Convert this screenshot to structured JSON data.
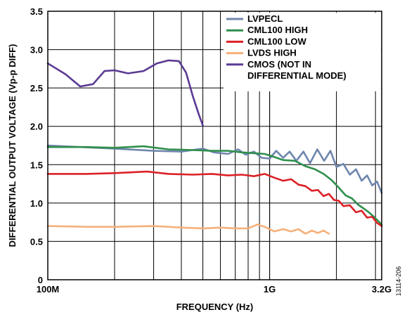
{
  "chart_data": {
    "type": "line",
    "title": "",
    "xlabel": "FREQUENCY (Hz)",
    "ylabel": "DIFFERENTIAL OUTPUT VOLTAGE (Vp-p DIFF)",
    "xscale": "log",
    "xlim": [
      100000000,
      3200000000
    ],
    "ylim": [
      0,
      3.5
    ],
    "x_tick_values": [
      100000000,
      1000000000,
      3200000000
    ],
    "x_tick_labels": [
      "100M",
      "1G",
      "3.2G"
    ],
    "y_tick_values": [
      0,
      0.5,
      1.0,
      1.5,
      2.0,
      2.5,
      3.0,
      3.5
    ],
    "y_tick_labels": [
      "0",
      "0.5",
      "1.0",
      "1.5",
      "2.0",
      "2.5",
      "3.0",
      "3.5"
    ],
    "grid": true,
    "legend_position": "top-right",
    "figure_id": "13114-206",
    "series": [
      {
        "name": "LVPECL",
        "color": "#6f86ad",
        "points": [
          [
            100000000,
            1.75
          ],
          [
            140000000,
            1.73
          ],
          [
            200000000,
            1.71
          ],
          [
            300000000,
            1.68
          ],
          [
            400000000,
            1.67
          ],
          [
            500000000,
            1.71
          ],
          [
            560000000,
            1.66
          ],
          [
            650000000,
            1.64
          ],
          [
            720000000,
            1.7
          ],
          [
            780000000,
            1.63
          ],
          [
            850000000,
            1.67
          ],
          [
            920000000,
            1.59
          ],
          [
            1000000000,
            1.58
          ],
          [
            1070000000,
            1.68
          ],
          [
            1150000000,
            1.59
          ],
          [
            1230000000,
            1.67
          ],
          [
            1320000000,
            1.55
          ],
          [
            1420000000,
            1.67
          ],
          [
            1520000000,
            1.52
          ],
          [
            1640000000,
            1.7
          ],
          [
            1760000000,
            1.55
          ],
          [
            1880000000,
            1.68
          ],
          [
            2000000000,
            1.47
          ],
          [
            2150000000,
            1.51
          ],
          [
            2300000000,
            1.37
          ],
          [
            2450000000,
            1.44
          ],
          [
            2600000000,
            1.29
          ],
          [
            2750000000,
            1.36
          ],
          [
            2900000000,
            1.23
          ],
          [
            3050000000,
            1.28
          ],
          [
            3200000000,
            1.13
          ]
        ]
      },
      {
        "name": "CML100 HIGH",
        "color": "#2f8f4d",
        "points": [
          [
            100000000,
            1.73
          ],
          [
            150000000,
            1.73
          ],
          [
            200000000,
            1.72
          ],
          [
            270000000,
            1.74
          ],
          [
            350000000,
            1.7
          ],
          [
            450000000,
            1.69
          ],
          [
            550000000,
            1.68
          ],
          [
            650000000,
            1.68
          ],
          [
            750000000,
            1.66
          ],
          [
            850000000,
            1.65
          ],
          [
            950000000,
            1.64
          ],
          [
            1050000000,
            1.6
          ],
          [
            1150000000,
            1.56
          ],
          [
            1300000000,
            1.55
          ],
          [
            1450000000,
            1.48
          ],
          [
            1600000000,
            1.44
          ],
          [
            1750000000,
            1.38
          ],
          [
            1900000000,
            1.3
          ],
          [
            2050000000,
            1.2
          ],
          [
            2200000000,
            1.1
          ],
          [
            2350000000,
            1.06
          ],
          [
            2500000000,
            0.98
          ],
          [
            2650000000,
            0.93
          ],
          [
            2800000000,
            0.88
          ],
          [
            2950000000,
            0.82
          ],
          [
            3100000000,
            0.76
          ],
          [
            3200000000,
            0.72
          ]
        ]
      },
      {
        "name": "CML100 LOW",
        "color": "#dc2127",
        "points": [
          [
            100000000,
            1.38
          ],
          [
            150000000,
            1.38
          ],
          [
            200000000,
            1.39
          ],
          [
            280000000,
            1.41
          ],
          [
            350000000,
            1.38
          ],
          [
            450000000,
            1.37
          ],
          [
            550000000,
            1.38
          ],
          [
            650000000,
            1.36
          ],
          [
            750000000,
            1.37
          ],
          [
            850000000,
            1.35
          ],
          [
            950000000,
            1.38
          ],
          [
            1050000000,
            1.33
          ],
          [
            1150000000,
            1.29
          ],
          [
            1250000000,
            1.31
          ],
          [
            1350000000,
            1.24
          ],
          [
            1450000000,
            1.22
          ],
          [
            1550000000,
            1.16
          ],
          [
            1650000000,
            1.17
          ],
          [
            1750000000,
            1.09
          ],
          [
            1850000000,
            1.12
          ],
          [
            1950000000,
            1.04
          ],
          [
            2050000000,
            1.03
          ],
          [
            2150000000,
            0.96
          ],
          [
            2300000000,
            0.97
          ],
          [
            2450000000,
            0.88
          ],
          [
            2600000000,
            0.9
          ],
          [
            2750000000,
            0.81
          ],
          [
            2900000000,
            0.82
          ],
          [
            3050000000,
            0.74
          ],
          [
            3200000000,
            0.7
          ]
        ]
      },
      {
        "name": "LVDS HIGH",
        "color": "#f6b07a",
        "points": [
          [
            100000000,
            0.7
          ],
          [
            150000000,
            0.69
          ],
          [
            200000000,
            0.69
          ],
          [
            300000000,
            0.7
          ],
          [
            400000000,
            0.68
          ],
          [
            500000000,
            0.67
          ],
          [
            600000000,
            0.68
          ],
          [
            700000000,
            0.67
          ],
          [
            800000000,
            0.67
          ],
          [
            880000000,
            0.72
          ],
          [
            950000000,
            0.69
          ],
          [
            1050000000,
            0.63
          ],
          [
            1150000000,
            0.66
          ],
          [
            1250000000,
            0.63
          ],
          [
            1350000000,
            0.66
          ],
          [
            1450000000,
            0.6
          ],
          [
            1550000000,
            0.64
          ],
          [
            1650000000,
            0.61
          ],
          [
            1750000000,
            0.64
          ],
          [
            1850000000,
            0.6
          ]
        ]
      },
      {
        "name": "CMOS (NOT IN\nDIFFERENTIAL MODE)",
        "color": "#5b3a94",
        "points": [
          [
            100000000,
            2.82
          ],
          [
            120000000,
            2.68
          ],
          [
            140000000,
            2.52
          ],
          [
            160000000,
            2.55
          ],
          [
            180000000,
            2.72
          ],
          [
            200000000,
            2.73
          ],
          [
            230000000,
            2.69
          ],
          [
            270000000,
            2.72
          ],
          [
            310000000,
            2.82
          ],
          [
            350000000,
            2.86
          ],
          [
            390000000,
            2.85
          ],
          [
            420000000,
            2.7
          ],
          [
            450000000,
            2.4
          ],
          [
            480000000,
            2.15
          ],
          [
            500000000,
            2.01
          ]
        ]
      }
    ]
  }
}
